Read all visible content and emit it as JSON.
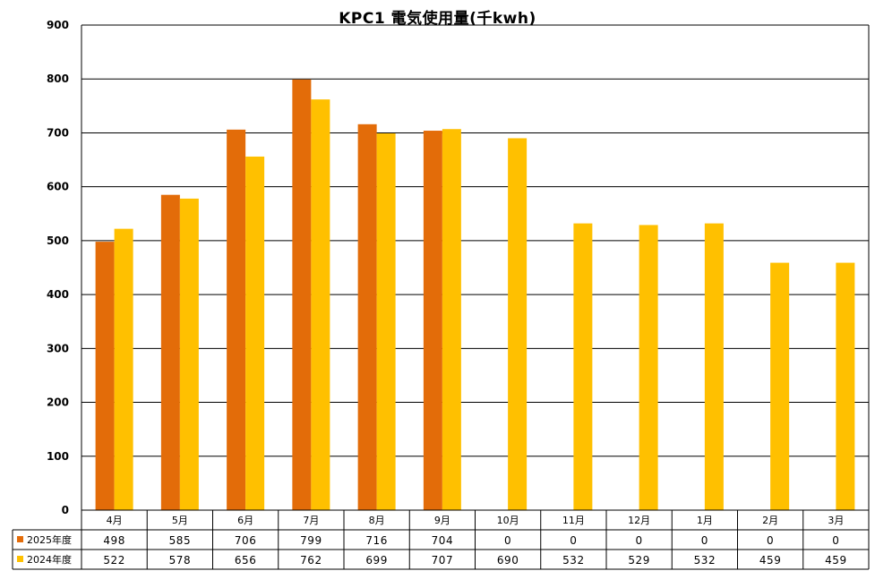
{
  "chart_data": {
    "type": "bar",
    "title": "KPC1 電気使用量(千kwh)",
    "categories": [
      "4月",
      "5月",
      "6月",
      "7月",
      "8月",
      "9月",
      "10月",
      "11月",
      "12月",
      "1月",
      "2月",
      "3月"
    ],
    "series": [
      {
        "name": "2025年度",
        "color": "#E36C09",
        "values": [
          498,
          585,
          706,
          799,
          716,
          704,
          0,
          0,
          0,
          0,
          0,
          0
        ]
      },
      {
        "name": "2024年度",
        "color": "#FFC000",
        "values": [
          522,
          578,
          656,
          762,
          699,
          707,
          690,
          532,
          529,
          532,
          459,
          459
        ]
      }
    ],
    "ylim": [
      0,
      900
    ],
    "yticks": [
      "0",
      "100",
      "200",
      "300",
      "400",
      "500",
      "600",
      "700",
      "800",
      "900"
    ],
    "grid": true,
    "legend": "data-table-below"
  }
}
